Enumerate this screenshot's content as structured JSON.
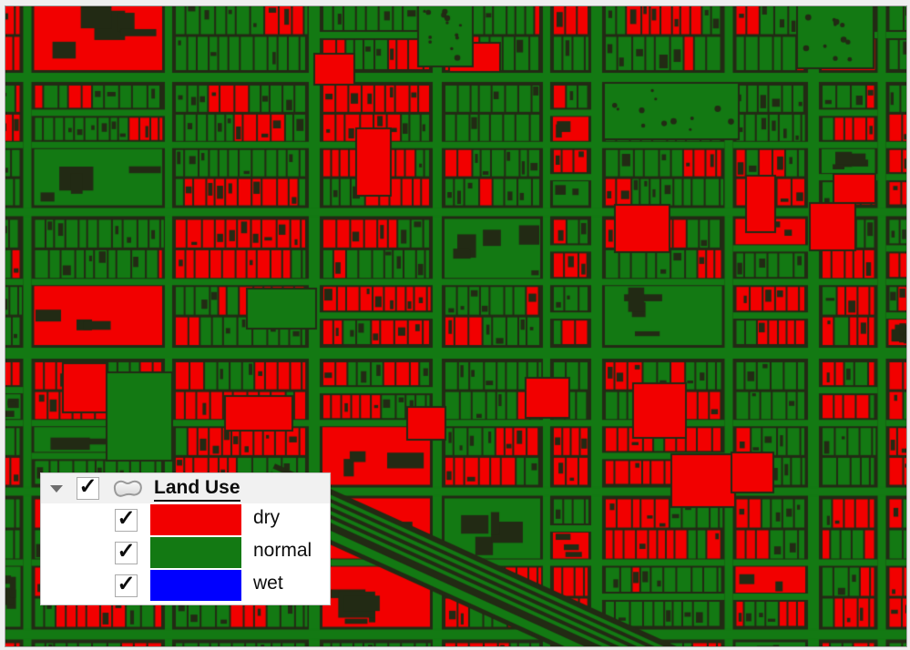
{
  "window": {
    "frame_color": "#efefef",
    "map_border_color": "#a3a3a3"
  },
  "map": {
    "type": "gis-parcel-map",
    "description": "Dense urban parcel map symbolized by land-use drought class; dry parcels red, normal parcels and street rights-of-way green, dark parcel outlines",
    "theme_colors": {
      "dry": "#f20000",
      "normal": "#137913",
      "wet": "#0000ff",
      "outline": "#222a14"
    }
  },
  "legend": {
    "layer_title": "Land Use",
    "layer_checked": true,
    "check_glyph": "✓",
    "classes": [
      {
        "label": "dry",
        "color": "#f20000",
        "checked": true
      },
      {
        "label": "normal",
        "color": "#137913",
        "checked": true
      },
      {
        "label": "wet",
        "color": "#0000ff",
        "checked": true
      }
    ]
  }
}
